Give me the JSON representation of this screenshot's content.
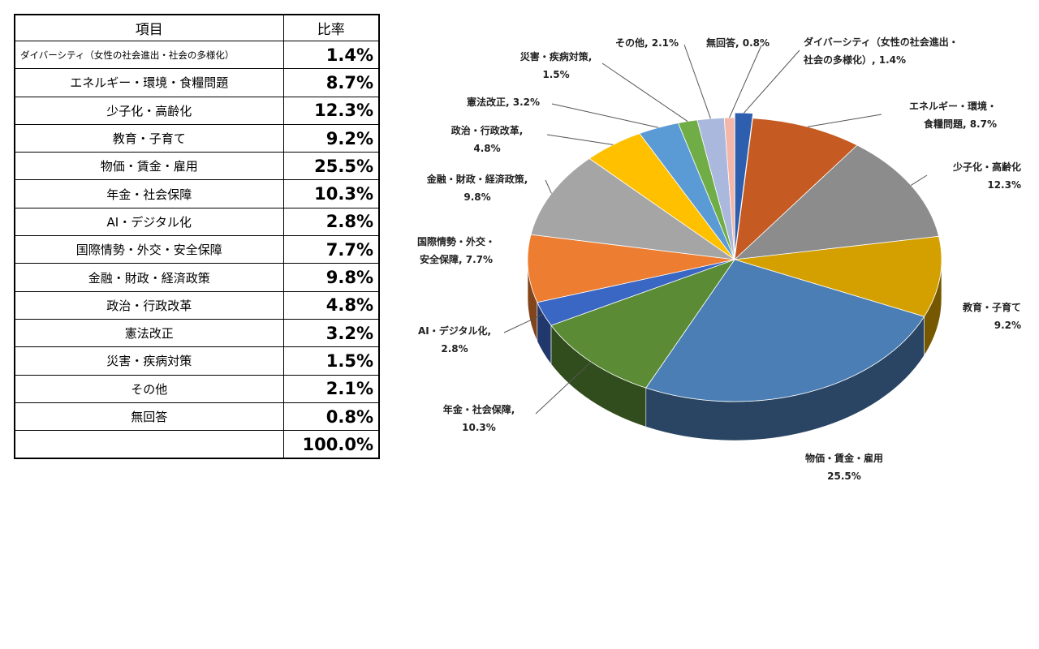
{
  "table": {
    "header_item": "項目",
    "header_ratio": "比率",
    "rows": [
      {
        "item": "ダイバーシティ（女性の社会進出・社会の多様化）",
        "ratio": "1.4%"
      },
      {
        "item": "エネルギー・環境・食糧問題",
        "ratio": "8.7%"
      },
      {
        "item": "少子化・高齢化",
        "ratio": "12.3%"
      },
      {
        "item": "教育・子育て",
        "ratio": "9.2%"
      },
      {
        "item": "物価・賃金・雇用",
        "ratio": "25.5%"
      },
      {
        "item": "年金・社会保障",
        "ratio": "10.3%"
      },
      {
        "item": "AI・デジタル化",
        "ratio": "2.8%"
      },
      {
        "item": "国際情勢・外交・安全保障",
        "ratio": "7.7%"
      },
      {
        "item": "金融・財政・経済政策",
        "ratio": "9.8%"
      },
      {
        "item": "政治・行政改革",
        "ratio": "4.8%"
      },
      {
        "item": "憲法改正",
        "ratio": "3.2%"
      },
      {
        "item": "災害・疾病対策",
        "ratio": "1.5%"
      },
      {
        "item": "その他",
        "ratio": "2.1%"
      },
      {
        "item": "無回答",
        "ratio": "0.8%"
      }
    ],
    "total": "100.0%"
  },
  "chart_data": {
    "type": "pie",
    "style": "3d-exploded-free",
    "slices": [
      {
        "name": "ダイバーシティ（女性の社会進出・社会の多様化）",
        "value": 1.4,
        "color": "#2E5FAE",
        "label_lines": [
          "ダイバーシティ（女性の社会進出・",
          "社会の多様化）, 1.4%"
        ]
      },
      {
        "name": "エネルギー・環境・食糧問題",
        "value": 8.7,
        "color": "#C55A22",
        "label_lines": [
          "エネルギー・環境・",
          "食糧問題, 8.7%"
        ]
      },
      {
        "name": "少子化・高齢化",
        "value": 12.3,
        "color": "#8C8C8C",
        "label_lines": [
          "少子化・高齢化",
          "12.3%"
        ]
      },
      {
        "name": "教育・子育て",
        "value": 9.2,
        "color": "#D4A000",
        "label_lines": [
          "教育・子育て",
          "9.2%"
        ]
      },
      {
        "name": "物価・賃金・雇用",
        "value": 25.5,
        "color": "#4A7EB4",
        "label_lines": [
          "物価・賃金・雇用",
          "25.5%"
        ]
      },
      {
        "name": "年金・社会保障",
        "value": 10.3,
        "color": "#5B8C35",
        "label_lines": [
          "年金・社会保障,",
          "10.3%"
        ]
      },
      {
        "name": "AI・デジタル化",
        "value": 2.8,
        "color": "#3A66C4",
        "label_lines": [
          "AI・デジタル化,",
          "2.8%"
        ]
      },
      {
        "name": "国際情勢・外交・安全保障",
        "value": 7.7,
        "color": "#ED7D31",
        "label_lines": [
          "国際情勢・外交・",
          "安全保障, 7.7%"
        ]
      },
      {
        "name": "金融・財政・経済政策",
        "value": 9.8,
        "color": "#A5A5A5",
        "label_lines": [
          "金融・財政・経済政策,",
          "9.8%"
        ]
      },
      {
        "name": "政治・行政改革",
        "value": 4.8,
        "color": "#FFC000",
        "label_lines": [
          "政治・行政改革,",
          "4.8%"
        ]
      },
      {
        "name": "憲法改正",
        "value": 3.2,
        "color": "#5B9BD5",
        "label_lines": [
          "憲法改正, 3.2%"
        ]
      },
      {
        "name": "災害・疾病対策",
        "value": 1.5,
        "color": "#70AD47",
        "label_lines": [
          "災害・疾病対策,",
          "1.5%"
        ]
      },
      {
        "name": "その他",
        "value": 2.1,
        "color": "#A9B8DC",
        "label_lines": [
          "その他, 2.1%"
        ]
      },
      {
        "name": "無回答",
        "value": 0.8,
        "color": "#F4B6A8",
        "label_lines": [
          "無回答, 0.8%"
        ]
      }
    ]
  }
}
